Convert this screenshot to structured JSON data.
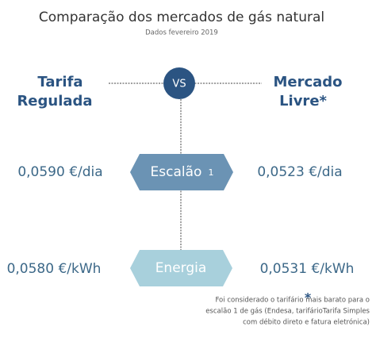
{
  "title": "Comparação dos mercados de gás natural",
  "subtitle": "Dados fevereiro 2019",
  "left_header": [
    "Tarifa",
    "Regulada"
  ],
  "right_header": [
    "Mercado",
    "Livre*"
  ],
  "center": "VS",
  "rows": [
    {
      "label": "Escalão",
      "label_sub": "1",
      "left": "0,0590 €/dia",
      "right": "0,0523 €/dia"
    },
    {
      "label": "Energia",
      "left": "0,0580 €/kWh",
      "right": "0,0531 €/kWh"
    }
  ],
  "footnote": {
    "marker": "*",
    "lines": [
      "Foi considerado o tarifário mais barato para o",
      "escalão 1 de gás (Endesa, tarifárioTarifa Simples",
      "com débito direto e fatura eletrónica)"
    ]
  }
}
